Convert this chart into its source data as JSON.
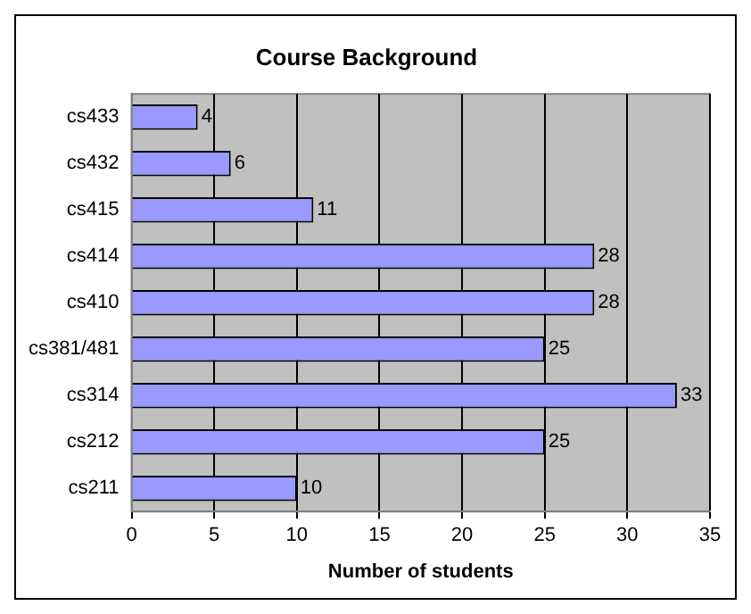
{
  "chart_data": {
    "type": "bar",
    "orientation": "horizontal",
    "title": "Course Background",
    "xlabel": "Number of students",
    "categories": [
      "cs433",
      "cs432",
      "cs415",
      "cs414",
      "cs410",
      "cs381/481",
      "cs314",
      "cs212",
      "cs211"
    ],
    "values": [
      4,
      6,
      11,
      28,
      28,
      25,
      33,
      25,
      10
    ],
    "color": "#9999ff",
    "xlim": [
      0,
      35
    ],
    "xticks": [
      0,
      5,
      10,
      15,
      20,
      25,
      30,
      35
    ],
    "grid": "x",
    "data_labels": true
  }
}
